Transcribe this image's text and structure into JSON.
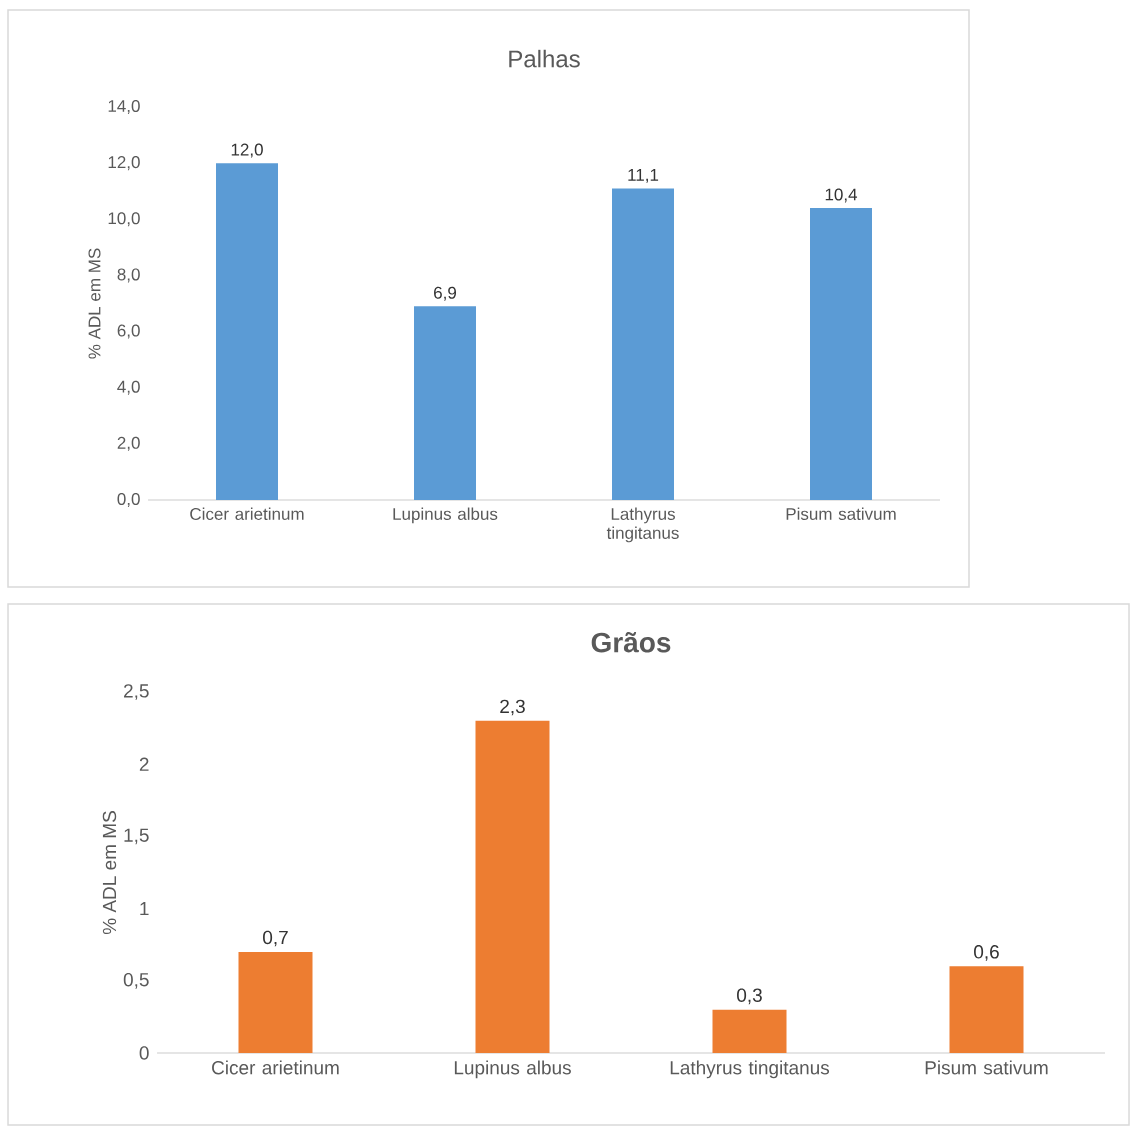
{
  "chart_data": [
    {
      "type": "bar",
      "title": "Palhas",
      "ylabel": "% ADL em MS",
      "categories": [
        "Cicer arietinum",
        "Lupinus albus",
        "Lathyrus tingitanus",
        "Pisum sativum"
      ],
      "values": [
        12.0,
        6.9,
        11.1,
        10.4
      ],
      "value_labels": [
        "12,0",
        "6,9",
        "11,1",
        "10,4"
      ],
      "color": "#5b9bd5",
      "ylim": [
        0,
        14
      ],
      "yticks": [
        {
          "value": 0,
          "label": "0,0"
        },
        {
          "value": 2,
          "label": "2,0"
        },
        {
          "value": 4,
          "label": "4,0"
        },
        {
          "value": 6,
          "label": "6,0"
        },
        {
          "value": 8,
          "label": "8,0"
        },
        {
          "value": 10,
          "label": "10,0"
        },
        {
          "value": 12,
          "label": "12,0"
        },
        {
          "value": 14,
          "label": "14,0"
        }
      ]
    },
    {
      "type": "bar",
      "title": "**Grãos**",
      "ylabel": "% ADL em MS",
      "categories": [
        "Cicer arietinum",
        "Lupinus albus",
        "Lathyrus tingitanus",
        "Pisum sativum"
      ],
      "values": [
        0.7,
        2.3,
        0.3,
        0.6
      ],
      "value_labels": [
        "0,7",
        "2,3",
        "0,3",
        "0,6"
      ],
      "color": "#ed7d31",
      "ylim": [
        0,
        2.5
      ],
      "yticks": [
        0,
        {
          "value": 0.5,
          "label": "0,5"
        },
        1,
        {
          "value": 1.5,
          "label": "1,5"
        },
        2,
        {
          "value": 2.5,
          "label": "2,5"
        }
      ]
    }
  ]
}
